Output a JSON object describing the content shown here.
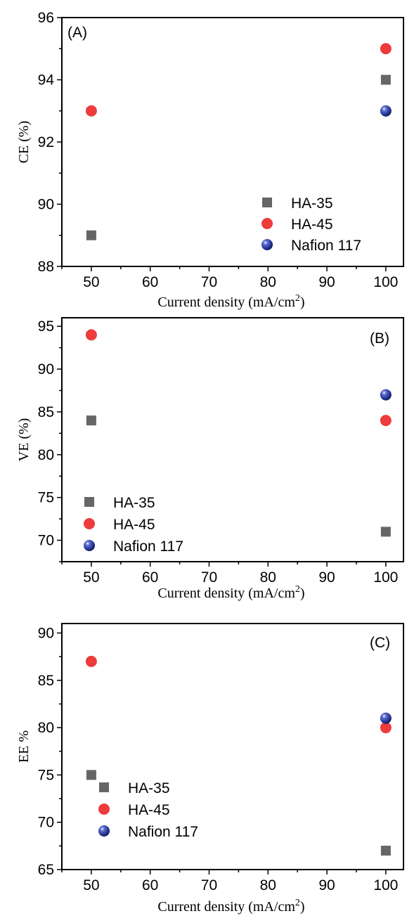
{
  "chart_data": [
    {
      "type": "scatter",
      "panel_label": "(A)",
      "xlabel": "Current density (mA/cm",
      "xlabel_sup": "2",
      "xlabel_close": ")",
      "ylabel": "CE (%)",
      "xlim": [
        45,
        103
      ],
      "ylim": [
        88,
        96
      ],
      "xticks": [
        50,
        60,
        70,
        80,
        90,
        100
      ],
      "yticks": [
        88,
        90,
        92,
        94,
        96
      ],
      "grid": false,
      "legend_position": "bottom-right",
      "series": [
        {
          "name": "HA-35",
          "marker": "square",
          "color": "#666666",
          "points": [
            {
              "x": 50,
              "y": 89
            },
            {
              "x": 100,
              "y": 94
            }
          ]
        },
        {
          "name": "HA-45",
          "marker": "circle",
          "color": "#ee3b3b",
          "points": [
            {
              "x": 50,
              "y": 93
            },
            {
              "x": 100,
              "y": 95
            }
          ]
        },
        {
          "name": "Nafion 117",
          "marker": "sphere",
          "color": "#2f3f9e",
          "points": [
            {
              "x": 100,
              "y": 93
            }
          ]
        }
      ]
    },
    {
      "type": "scatter",
      "panel_label": "(B)",
      "xlabel": "Current density (mA/cm",
      "xlabel_sup": "2",
      "xlabel_close": ")",
      "ylabel": "VE (%)",
      "xlim": [
        45,
        103
      ],
      "ylim": [
        67.5,
        96
      ],
      "xticks": [
        50,
        60,
        70,
        80,
        90,
        100
      ],
      "yticks": [
        70,
        75,
        80,
        85,
        90,
        95
      ],
      "grid": false,
      "legend_position": "bottom-left",
      "series": [
        {
          "name": "HA-35",
          "marker": "square",
          "color": "#666666",
          "points": [
            {
              "x": 50,
              "y": 84
            },
            {
              "x": 100,
              "y": 71
            }
          ]
        },
        {
          "name": "HA-45",
          "marker": "circle",
          "color": "#ee3b3b",
          "points": [
            {
              "x": 50,
              "y": 94
            },
            {
              "x": 100,
              "y": 84
            }
          ]
        },
        {
          "name": "Nafion 117",
          "marker": "sphere",
          "color": "#2f3f9e",
          "points": [
            {
              "x": 100,
              "y": 87
            }
          ]
        }
      ]
    },
    {
      "type": "scatter",
      "panel_label": "(C)",
      "xlabel": "Current density (mA/cm",
      "xlabel_sup": "2",
      "xlabel_close": ")",
      "ylabel": "EE %",
      "xlim": [
        45,
        103
      ],
      "ylim": [
        65,
        91
      ],
      "xticks": [
        50,
        60,
        70,
        80,
        90,
        100
      ],
      "yticks": [
        65,
        70,
        75,
        80,
        85,
        90
      ],
      "grid": false,
      "legend_position": "bottom-left",
      "series": [
        {
          "name": "HA-35",
          "marker": "square",
          "color": "#666666",
          "points": [
            {
              "x": 50,
              "y": 75
            },
            {
              "x": 100,
              "y": 67
            }
          ]
        },
        {
          "name": "HA-45",
          "marker": "circle",
          "color": "#ee3b3b",
          "points": [
            {
              "x": 50,
              "y": 87
            },
            {
              "x": 100,
              "y": 80
            }
          ]
        },
        {
          "name": "Nafion 117",
          "marker": "sphere",
          "color": "#2f3f9e",
          "points": [
            {
              "x": 100,
              "y": 81
            }
          ]
        }
      ]
    }
  ]
}
